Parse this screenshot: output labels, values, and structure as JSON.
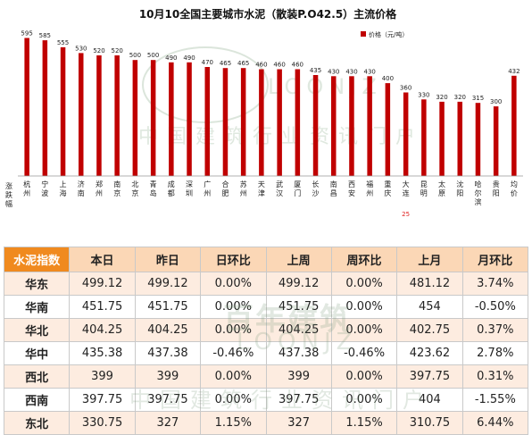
{
  "chart_data": {
    "type": "bar",
    "title": "10月10全国主要城市水泥（散装P.O42.5）主流价格",
    "legend": {
      "label": "价格（元/吨）",
      "color": "#c00000",
      "placement": "top-right"
    },
    "xlabel_left": "涨跌幅",
    "categories": [
      "杭州",
      "宁波",
      "上海",
      "济南",
      "郑州",
      "南京",
      "北京",
      "青岛",
      "成都",
      "深圳",
      "广州",
      "合肥",
      "苏州",
      "天津",
      "武汉",
      "厦门",
      "长沙",
      "南昌",
      "西安",
      "福州",
      "重庆",
      "大连",
      "昆明",
      "太原",
      "沈阳",
      "哈尔滨",
      "贵阳",
      "均价"
    ],
    "values": [
      595,
      585,
      555,
      530,
      520,
      520,
      500,
      500,
      490,
      490,
      470,
      465,
      465,
      460,
      460,
      460,
      435,
      430,
      430,
      430,
      400,
      360,
      330,
      320,
      320,
      315,
      300,
      432
    ],
    "changes": [
      "",
      "",
      "",
      "",
      "",
      "",
      "",
      "",
      "",
      "",
      "",
      "",
      "",
      "",
      "",
      "",
      "",
      "",
      "",
      "",
      "",
      "25",
      "",
      "",
      "",
      "",
      "",
      ""
    ],
    "ylim": [
      0,
      620
    ],
    "grid": false,
    "bar_color": "#c00000"
  },
  "table": {
    "headers": [
      "水泥指数",
      "本日",
      "昨日",
      "日环比",
      "上周",
      "周环比",
      "上月",
      "月环比"
    ],
    "rows": [
      {
        "region": "华东",
        "today": "499.12",
        "yesterday": "499.12",
        "day_change": "0.00%",
        "last_week": "499.12",
        "week_change": "0.00%",
        "last_month": "481.12",
        "month_change": "3.74%",
        "month_sign": "pos",
        "day_sign": "zero",
        "week_sign": "zero"
      },
      {
        "region": "华南",
        "today": "451.75",
        "yesterday": "451.75",
        "day_change": "0.00%",
        "last_week": "451.75",
        "week_change": "0.00%",
        "last_month": "454",
        "month_change": "-0.50%",
        "month_sign": "neg",
        "day_sign": "zero",
        "week_sign": "zero"
      },
      {
        "region": "华北",
        "today": "404.25",
        "yesterday": "404.25",
        "day_change": "0.00%",
        "last_week": "404.25",
        "week_change": "0.00%",
        "last_month": "402.75",
        "month_change": "0.37%",
        "month_sign": "pos",
        "day_sign": "zero",
        "week_sign": "zero"
      },
      {
        "region": "华中",
        "today": "435.38",
        "yesterday": "437.38",
        "day_change": "-0.46%",
        "last_week": "437.38",
        "week_change": "-0.46%",
        "last_month": "423.62",
        "month_change": "2.78%",
        "month_sign": "pos",
        "day_sign": "neg",
        "week_sign": "neg"
      },
      {
        "region": "西北",
        "today": "399",
        "yesterday": "399",
        "day_change": "0.00%",
        "last_week": "399",
        "week_change": "0.00%",
        "last_month": "397.75",
        "month_change": "0.31%",
        "month_sign": "pos",
        "day_sign": "zero",
        "week_sign": "zero"
      },
      {
        "region": "西南",
        "today": "397.75",
        "yesterday": "397.75",
        "day_change": "0.00%",
        "last_week": "397.75",
        "week_change": "0.00%",
        "last_month": "404",
        "month_change": "-1.55%",
        "month_sign": "neg",
        "day_sign": "zero",
        "week_sign": "zero"
      },
      {
        "region": "东北",
        "today": "330.75",
        "yesterday": "327",
        "day_change": "1.15%",
        "last_week": "327",
        "week_change": "1.15%",
        "last_month": "310.75",
        "month_change": "6.44%",
        "month_sign": "pos",
        "day_sign": "pos",
        "week_sign": "pos"
      }
    ]
  },
  "watermark": {
    "brand_cn": "百年建筑",
    "brand_en": "LOONJZ",
    "slogan": "中国建筑行业资讯门户"
  }
}
